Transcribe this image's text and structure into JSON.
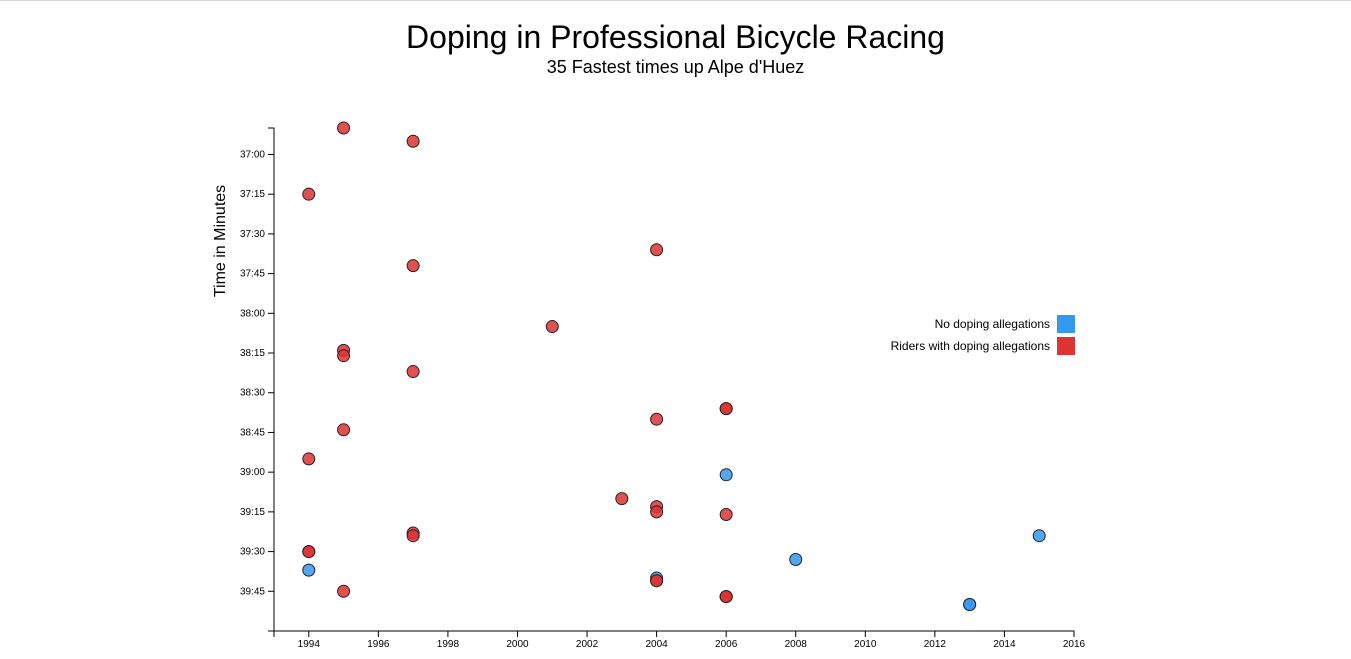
{
  "chart_data": {
    "type": "scatter",
    "title": "Doping in Professional Bicycle Racing",
    "subtitle": "35 Fastest times up Alpe d'Huez",
    "ylabel": "Time in Minutes",
    "xlabel": "",
    "xlim": [
      1993,
      2016
    ],
    "ylim_seconds": [
      2210,
      2400
    ],
    "x_ticks": [
      "1994",
      "1996",
      "1998",
      "2000",
      "2002",
      "2004",
      "2006",
      "2008",
      "2010",
      "2012",
      "2014",
      "2016"
    ],
    "y_ticks": [
      "37:00",
      "37:15",
      "37:30",
      "37:45",
      "38:00",
      "38:15",
      "38:30",
      "38:45",
      "39:00",
      "39:15",
      "39:30",
      "39:45"
    ],
    "legend_position": "right",
    "colors": {
      "no_doping": "#3399ee",
      "doping": "#dd3333"
    },
    "legend": [
      {
        "label": "No doping allegations",
        "group": "no_doping"
      },
      {
        "label": "Riders with doping allegations",
        "group": "doping"
      }
    ],
    "points": [
      {
        "x": 1995,
        "y": "36:50",
        "group": "doping"
      },
      {
        "x": 1997,
        "y": "36:55",
        "group": "doping"
      },
      {
        "x": 1994,
        "y": "37:15",
        "group": "doping"
      },
      {
        "x": 2004,
        "y": "37:36",
        "group": "doping"
      },
      {
        "x": 1997,
        "y": "37:42",
        "group": "doping"
      },
      {
        "x": 2001,
        "y": "38:05",
        "group": "doping"
      },
      {
        "x": 1995,
        "y": "38:14",
        "group": "doping"
      },
      {
        "x": 1995,
        "y": "38:16",
        "group": "doping"
      },
      {
        "x": 1997,
        "y": "38:22",
        "group": "doping"
      },
      {
        "x": 2006,
        "y": "38:36",
        "group": "doping"
      },
      {
        "x": 2006,
        "y": "38:36",
        "group": "doping"
      },
      {
        "x": 2004,
        "y": "38:40",
        "group": "doping"
      },
      {
        "x": 1995,
        "y": "38:44",
        "group": "doping"
      },
      {
        "x": 1994,
        "y": "38:55",
        "group": "doping"
      },
      {
        "x": 2006,
        "y": "39:01",
        "group": "no_doping"
      },
      {
        "x": 2003,
        "y": "39:10",
        "group": "doping"
      },
      {
        "x": 2004,
        "y": "39:13",
        "group": "doping"
      },
      {
        "x": 2004,
        "y": "39:15",
        "group": "doping"
      },
      {
        "x": 2006,
        "y": "39:16",
        "group": "doping"
      },
      {
        "x": 1997,
        "y": "39:23",
        "group": "doping"
      },
      {
        "x": 1997,
        "y": "39:24",
        "group": "doping"
      },
      {
        "x": 2015,
        "y": "39:24",
        "group": "no_doping"
      },
      {
        "x": 1994,
        "y": "39:30",
        "group": "doping"
      },
      {
        "x": 1994,
        "y": "39:30",
        "group": "doping"
      },
      {
        "x": 2008,
        "y": "39:33",
        "group": "no_doping"
      },
      {
        "x": 1994,
        "y": "39:37",
        "group": "no_doping"
      },
      {
        "x": 2004,
        "y": "39:40",
        "group": "no_doping"
      },
      {
        "x": 2004,
        "y": "39:41",
        "group": "doping"
      },
      {
        "x": 2004,
        "y": "39:41",
        "group": "doping"
      },
      {
        "x": 1995,
        "y": "39:45",
        "group": "doping"
      },
      {
        "x": 2006,
        "y": "39:47",
        "group": "doping"
      },
      {
        "x": 2006,
        "y": "39:47",
        "group": "doping"
      },
      {
        "x": 2006,
        "y": "39:47",
        "group": "doping"
      },
      {
        "x": 2013,
        "y": "39:50",
        "group": "no_doping"
      },
      {
        "x": 2013,
        "y": "39:50",
        "group": "no_doping"
      }
    ]
  }
}
